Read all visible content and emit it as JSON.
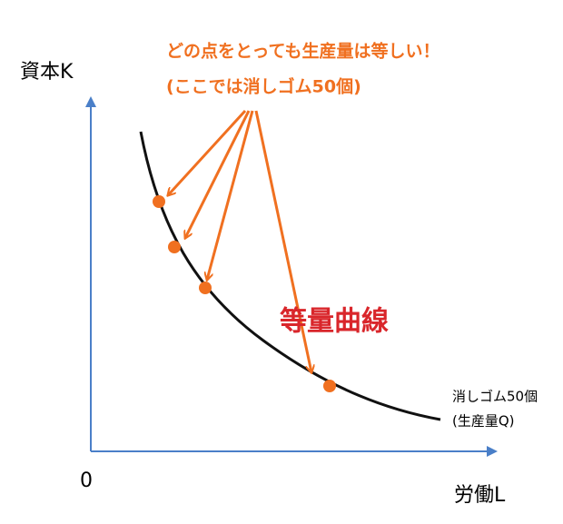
{
  "axes": {
    "y_label": "資本K",
    "x_label": "労働L",
    "origin": "0"
  },
  "annotation": {
    "line1": "どの点をとっても生産量は等しい！",
    "line2": "(ここでは消しゴム50個)"
  },
  "curve": {
    "name": "等量曲線",
    "label_line1": "消しゴム50個",
    "label_line2": "(生産量Q)"
  }
}
